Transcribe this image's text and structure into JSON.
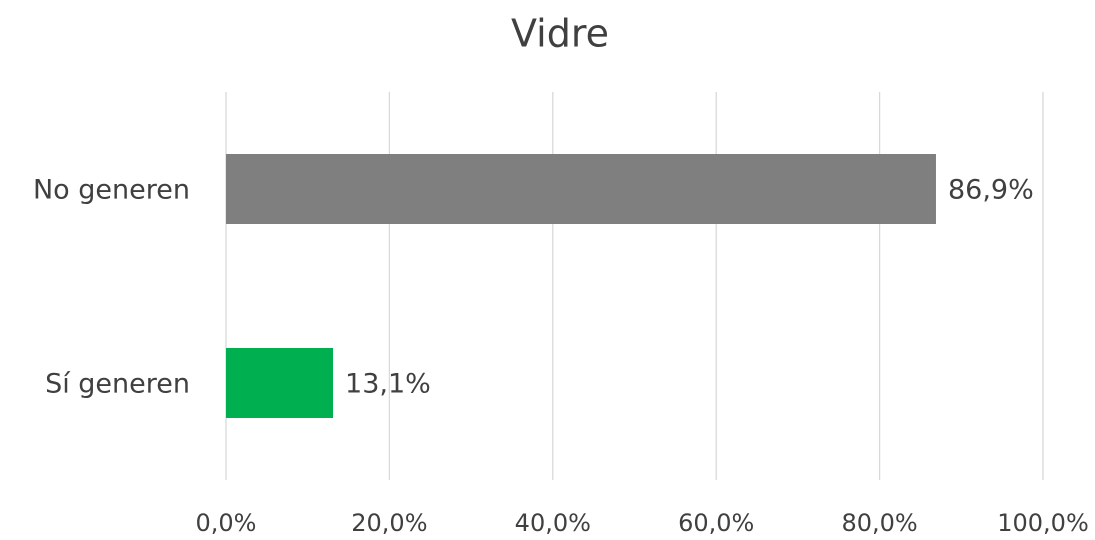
{
  "chart_data": {
    "type": "hbar",
    "title": "Vidre",
    "categories": [
      "No generen",
      "Sí generen"
    ],
    "values": [
      86.9,
      13.1
    ],
    "value_labels": [
      "86,9%",
      "13,1%"
    ],
    "colors": [
      "#7f7f7f",
      "#00b050"
    ],
    "xlim": [
      0,
      100
    ],
    "xticks": [
      {
        "value": 0,
        "label": "0,0%"
      },
      {
        "value": 20,
        "label": "20,0%"
      },
      {
        "value": 40,
        "label": "40,0%"
      },
      {
        "value": 60,
        "label": "60,0%"
      },
      {
        "value": 80,
        "label": "80,0%"
      },
      {
        "value": 100,
        "label": "100,0%"
      }
    ],
    "grid": true
  }
}
